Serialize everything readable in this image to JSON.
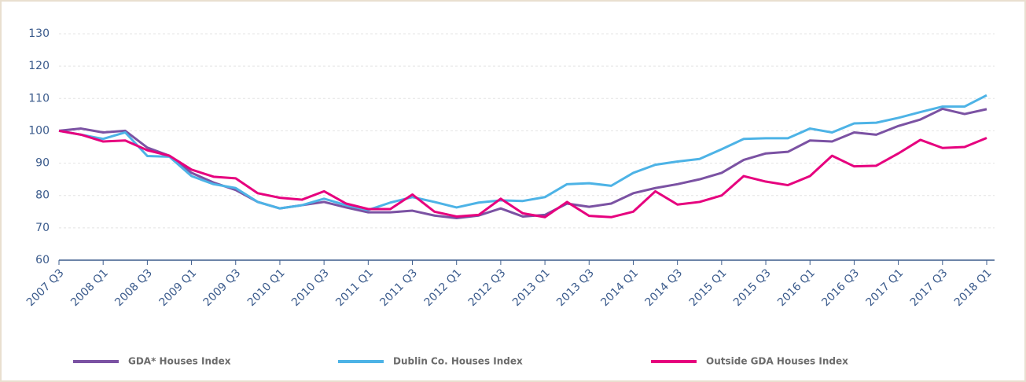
{
  "chart_data": {
    "type": "line",
    "categories": [
      "2007 Q3",
      null,
      "2008 Q1",
      null,
      "2008 Q3",
      null,
      "2009 Q1",
      null,
      "2009 Q3",
      null,
      "2010 Q1",
      null,
      "2010 Q3",
      null,
      "2011 Q1",
      null,
      "2011 Q3",
      null,
      "2012 Q1",
      null,
      "2012 Q3",
      null,
      "2013 Q1",
      null,
      "2013 Q3",
      null,
      "2014 Q1",
      null,
      "2014 Q3",
      null,
      "2015 Q1",
      null,
      "2015 Q3",
      null,
      "2016 Q1",
      null,
      "2016 Q3",
      null,
      "2017 Q1",
      null,
      "2017 Q3",
      null,
      "2018 Q1"
    ],
    "series": [
      {
        "name": "GDA* Houses Index",
        "color": "#7b52a3",
        "values": [
          100,
          100.7,
          99.5,
          100,
          94.8,
          92.3,
          87,
          84,
          81.7,
          78,
          76,
          77,
          78,
          76.3,
          74.8,
          74.8,
          75.3,
          73.8,
          73,
          73.8,
          76,
          73.5,
          74,
          77.5,
          76.5,
          77.5,
          80.7,
          82.3,
          83.5,
          85,
          87,
          91,
          93,
          93.5,
          97,
          96.7,
          99.5,
          98.8,
          101.5,
          103.5,
          106.8,
          105.2,
          106.7
        ]
      },
      {
        "name": "Dublin Co. Houses Index",
        "color": "#4db3e6",
        "values": [
          100,
          98.8,
          97.5,
          99.5,
          92.2,
          92,
          86,
          83.5,
          82.3,
          78,
          76,
          77,
          79,
          77,
          75.5,
          77.8,
          79.5,
          78,
          76.3,
          77.8,
          78.5,
          78.3,
          79.5,
          83.5,
          83.8,
          83,
          87,
          89.5,
          90.5,
          91.3,
          94.3,
          97.5,
          97.7,
          97.7,
          100.7,
          99.5,
          102.3,
          102.5,
          104,
          105.8,
          107.5,
          107.5,
          111
        ]
      },
      {
        "name": "Outside GDA Houses Index",
        "color": "#e6007e",
        "values": [
          100,
          98.8,
          96.7,
          97,
          94,
          92.3,
          88,
          85.8,
          85.3,
          80.7,
          79.3,
          78.7,
          81.3,
          77.5,
          75.8,
          75.8,
          80.3,
          75,
          73.5,
          74,
          79,
          74.5,
          73.3,
          78,
          73.7,
          73.3,
          75,
          81.3,
          77.2,
          78,
          80,
          86,
          84.3,
          83.2,
          86,
          92.3,
          89,
          89.2,
          93,
          97.2,
          94.7,
          95,
          97.8
        ]
      }
    ],
    "ylim": [
      60,
      130
    ],
    "yticks": [
      60,
      70,
      80,
      90,
      100,
      110,
      120,
      130
    ],
    "grid": true,
    "legend": "bottom"
  }
}
